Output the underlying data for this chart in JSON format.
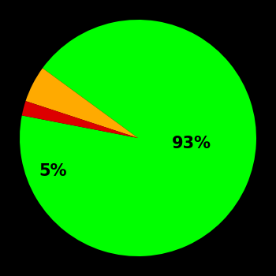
{
  "slices": [
    93,
    5,
    2
  ],
  "colors": [
    "#00ff00",
    "#ffaa00",
    "#dd0000"
  ],
  "labels": [
    "93%",
    "5%",
    ""
  ],
  "background_color": "#000000",
  "label_fontsize": 15,
  "label_color": "#000000",
  "startangle": 169,
  "figsize": [
    3.5,
    3.5
  ],
  "dpi": 100
}
